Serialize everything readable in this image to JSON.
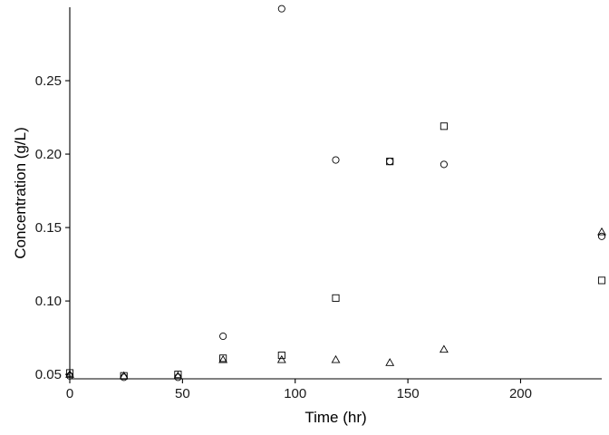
{
  "chart_data": {
    "type": "scatter",
    "title": "",
    "xlabel": "Time (hr)",
    "ylabel": "Concentration (g/L)",
    "xlim": [
      0,
      236
    ],
    "ylim": [
      0.047,
      0.3
    ],
    "x_ticks": [
      0,
      50,
      100,
      150,
      200
    ],
    "y_ticks": [
      0.05,
      0.1,
      0.15,
      0.2,
      0.25
    ],
    "x_tick_labels": [
      "0",
      "50",
      "100",
      "150",
      "200"
    ],
    "y_tick_labels": [
      "0.05",
      "0.10",
      "0.15",
      "0.20",
      "0.25"
    ],
    "grid": false,
    "legend": "none",
    "series": [
      {
        "marker": "circle",
        "x": [
          0,
          24,
          48,
          68,
          94,
          118,
          142,
          166,
          236
        ],
        "y": [
          0.049,
          0.048,
          0.048,
          0.076,
          0.299,
          0.196,
          0.195,
          0.193,
          0.144
        ]
      },
      {
        "marker": "square",
        "x": [
          0,
          24,
          48,
          68,
          94,
          118,
          142,
          166,
          236
        ],
        "y": [
          0.051,
          0.049,
          0.05,
          0.061,
          0.063,
          0.102,
          0.195,
          0.219,
          0.114
        ]
      },
      {
        "marker": "triangle",
        "x": [
          0,
          24,
          48,
          68,
          94,
          118,
          142,
          166,
          236
        ],
        "y": [
          0.05,
          0.049,
          0.049,
          0.06,
          0.06,
          0.06,
          0.058,
          0.067,
          0.147
        ]
      }
    ]
  }
}
